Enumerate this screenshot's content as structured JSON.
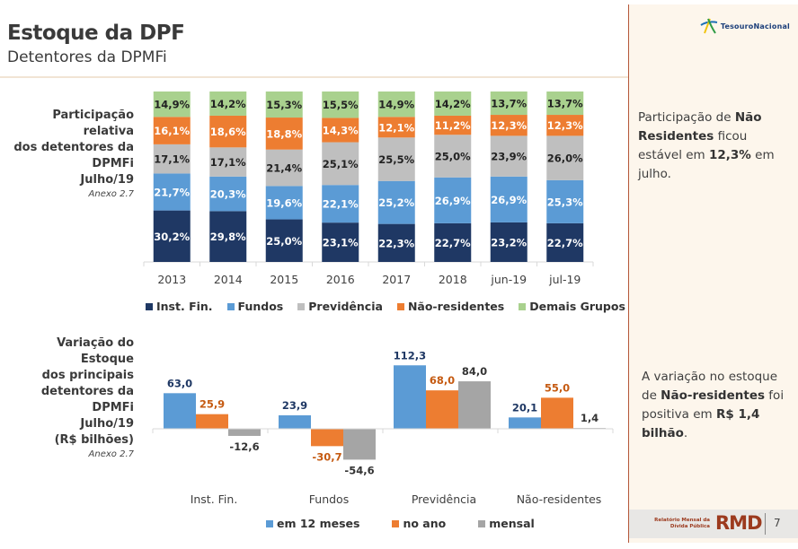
{
  "header": {
    "title": "Estoque da DPF",
    "subtitle": "Detentores da DPMFi"
  },
  "logo": {
    "text": "TesouroNacional"
  },
  "side_notes": {
    "note1": {
      "p1": "Participação de ",
      "b1": "Não Residentes",
      "p2": " ficou estável em ",
      "b2": "12,3%",
      "p3": " em julho."
    },
    "note2": {
      "p1": "A variação no estoque de  ",
      "b1": "Não-residentes",
      "p2": " foi positiva em ",
      "b2": "R$ 1,4 bilhão",
      "p3": "."
    }
  },
  "footer": {
    "small_line1": "Relatório Mensal da",
    "small_line2": "Dívida Pública",
    "brand": "RMD",
    "page": "7"
  },
  "chart_labels": {
    "chart1": {
      "l1": "Participação relativa",
      "l2": "dos detentores da",
      "l3": "DPMFi",
      "l4": "Julho/19",
      "anexo": "Anexo 2.7"
    },
    "chart2": {
      "l1": "Variação do Estoque",
      "l2": "dos principais",
      "l3": "detentores da DPMFi",
      "l4": "Julho/19",
      "l5": "(R$ bilhões)",
      "anexo": "Anexo 2.7"
    }
  },
  "chart_data": [
    {
      "type": "bar",
      "stacked": true,
      "title": "Participação relativa dos detentores da DPMFi Julho/19",
      "categories": [
        "2013",
        "2014",
        "2015",
        "2016",
        "2017",
        "2018",
        "jun-19",
        "jul-19"
      ],
      "series": [
        {
          "name": "Inst. Fin.",
          "color": "#1f3864",
          "label_color": "#ffffff",
          "values": [
            30.2,
            29.8,
            25.0,
            23.1,
            22.3,
            22.7,
            23.2,
            22.7
          ],
          "labels": [
            "30,2%",
            "29,8%",
            "25,0%",
            "23,1%",
            "22,3%",
            "22,7%",
            "23,2%",
            "22,7%"
          ]
        },
        {
          "name": "Fundos",
          "color": "#5b9bd5",
          "label_color": "#ffffff",
          "values": [
            21.7,
            20.3,
            19.6,
            22.1,
            25.2,
            26.9,
            26.9,
            25.3
          ],
          "labels": [
            "21,7%",
            "20,3%",
            "19,6%",
            "22,1%",
            "25,2%",
            "26,9%",
            "26,9%",
            "25,3%"
          ]
        },
        {
          "name": "Previdência",
          "color": "#bfbfbf",
          "label_color": "#222222",
          "values": [
            17.1,
            17.1,
            21.4,
            25.1,
            25.5,
            25.0,
            23.9,
            26.0
          ],
          "labels": [
            "17,1%",
            "17,1%",
            "21,4%",
            "25,1%",
            "25,5%",
            "25,0%",
            "23,9%",
            "26,0%"
          ]
        },
        {
          "name": "Não-residentes",
          "color": "#ed7d31",
          "label_color": "#ffffff",
          "values": [
            16.1,
            18.6,
            18.8,
            14.3,
            12.1,
            11.2,
            12.3,
            12.3
          ],
          "labels": [
            "16,1%",
            "18,6%",
            "18,8%",
            "14,3%",
            "12,1%",
            "11,2%",
            "12,3%",
            "12,3%"
          ]
        },
        {
          "name": "Demais Grupos",
          "color": "#a9d18e",
          "label_color": "#222222",
          "values": [
            14.9,
            14.2,
            15.3,
            15.5,
            14.9,
            14.2,
            13.7,
            13.7
          ],
          "labels": [
            "14,9%",
            "14,2%",
            "15,3%",
            "15,5%",
            "14,9%",
            "14,2%",
            "13,7%",
            "13,7%"
          ]
        }
      ],
      "ylim": [
        0,
        100
      ],
      "legend": "bottom",
      "grid": false
    },
    {
      "type": "bar",
      "stacked": false,
      "title": "Variação do Estoque dos principais detentores da DPMFi Julho/19 (R$ bilhões)",
      "categories": [
        "Inst. Fin.",
        "Fundos",
        "Previdência",
        "Não-residentes"
      ],
      "series": [
        {
          "name": "em 12 meses",
          "color": "#5b9bd5",
          "label_color": "#1f3864",
          "values": [
            63.0,
            23.9,
            112.3,
            20.1
          ],
          "labels": [
            "63,0",
            "23,9",
            "112,3",
            "20,1"
          ]
        },
        {
          "name": "no ano",
          "color": "#ed7d31",
          "label_color": "#c55a11",
          "values": [
            25.9,
            -30.7,
            68.0,
            55.0
          ],
          "labels": [
            "25,9",
            "-30,7",
            "68,0",
            "55,0"
          ]
        },
        {
          "name": "mensal",
          "color": "#a5a5a5",
          "label_color": "#333333",
          "values": [
            -12.6,
            -54.6,
            84.0,
            1.4
          ],
          "labels": [
            "-12,6",
            "-54,6",
            "84,0",
            "1,4"
          ]
        }
      ],
      "ylim": [
        -60,
        115
      ],
      "legend": "bottom",
      "grid": false
    }
  ]
}
